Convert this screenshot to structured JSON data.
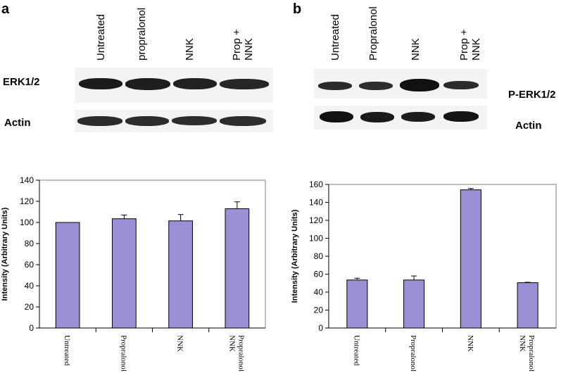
{
  "panels": {
    "a": {
      "letter": "a",
      "lanes": [
        "Untreated",
        "propralonol",
        "NNK",
        "Prop +\nNNK"
      ],
      "blot_labels": {
        "top": "ERK1/2",
        "bottom": "Actin"
      }
    },
    "b": {
      "letter": "b",
      "lanes": [
        "Untreated",
        "Propralonol",
        "NNK",
        "Prop +\nNNK"
      ],
      "blot_labels": {
        "top": "P-ERK1/2",
        "bottom": "Actin"
      }
    }
  },
  "colors": {
    "bar_fill": "#9b8fd6",
    "bar_stroke": "#000000",
    "band_dark": "#1a1a1a"
  },
  "chart_data": [
    {
      "type": "bar",
      "title": "",
      "xlabel": "",
      "ylabel": "Intensity (Arbitrary Units)",
      "categories": [
        "Untreated",
        "Propralonol",
        "NNK",
        "Propralonol\nNNK"
      ],
      "values": [
        100,
        103.5,
        101.5,
        113
      ],
      "errors": [
        0,
        3.5,
        6,
        6.5
      ],
      "ylim": [
        0,
        140
      ],
      "yticks": [
        0,
        20,
        40,
        60,
        80,
        100,
        120,
        140
      ],
      "grid": false
    },
    {
      "type": "bar",
      "title": "",
      "xlabel": "",
      "ylabel": "Intensity (Arbitrary Units)",
      "categories": [
        "Untreated",
        "Propralonol",
        "NNK",
        "Propralonol\nNNK"
      ],
      "values": [
        53.5,
        53.5,
        154,
        50.5
      ],
      "errors": [
        2,
        4.5,
        1.5,
        0.5
      ],
      "ylim": [
        0,
        160
      ],
      "yticks": [
        0,
        20,
        40,
        60,
        80,
        100,
        120,
        140,
        160
      ],
      "grid": false
    }
  ]
}
